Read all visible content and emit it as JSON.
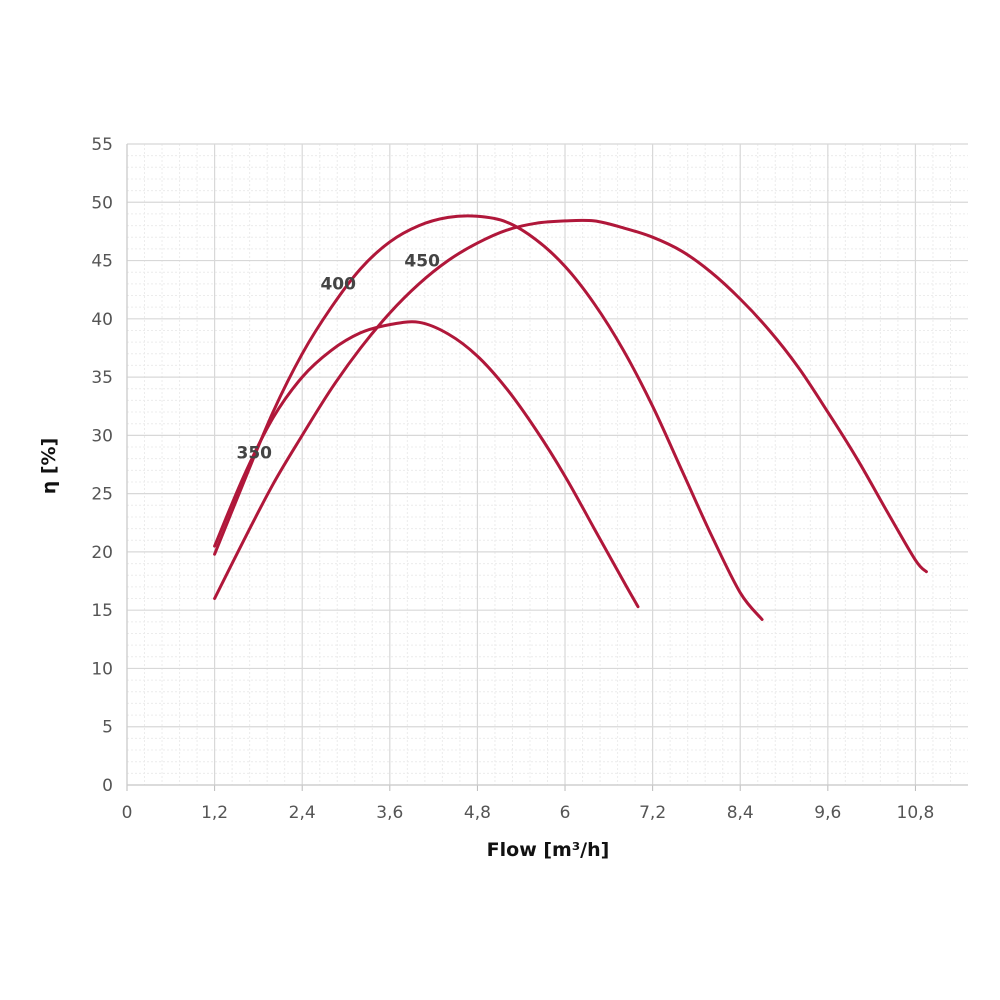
{
  "chart_data": {
    "type": "line",
    "xlabel": "Flow [m³/h]",
    "ylabel": "η [%]",
    "xlim": [
      0,
      11.52
    ],
    "ylim": [
      0,
      55
    ],
    "x_ticks": [
      "0",
      "1,2",
      "2,4",
      "3,6",
      "4,8",
      "6",
      "7,2",
      "8,4",
      "9,6",
      "10,8"
    ],
    "y_ticks": [
      "0",
      "5",
      "10",
      "15",
      "20",
      "25",
      "30",
      "35",
      "40",
      "45",
      "50",
      "55"
    ],
    "grid": true,
    "colors": {
      "curve": "#b0173a",
      "grid_major": "#d8d8d8",
      "grid_minor": "#ececec"
    },
    "series": [
      {
        "name": "350",
        "label": "350",
        "label_at": [
          1.5,
          28
        ],
        "points": [
          [
            1.2,
            20.5
          ],
          [
            1.6,
            26.5
          ],
          [
            2.0,
            31.5
          ],
          [
            2.4,
            35.0
          ],
          [
            2.8,
            37.3
          ],
          [
            3.2,
            38.8
          ],
          [
            3.6,
            39.5
          ],
          [
            4.0,
            39.7
          ],
          [
            4.4,
            38.7
          ],
          [
            4.8,
            36.8
          ],
          [
            5.2,
            34.0
          ],
          [
            5.6,
            30.5
          ],
          [
            6.0,
            26.5
          ],
          [
            6.4,
            22.0
          ],
          [
            6.8,
            17.5
          ],
          [
            7.0,
            15.3
          ]
        ]
      },
      {
        "name": "400",
        "label": "400",
        "label_at": [
          2.65,
          42.5
        ],
        "points": [
          [
            1.2,
            19.8
          ],
          [
            1.6,
            26.0
          ],
          [
            2.0,
            32.0
          ],
          [
            2.4,
            37.0
          ],
          [
            2.8,
            41.0
          ],
          [
            3.2,
            44.3
          ],
          [
            3.6,
            46.6
          ],
          [
            4.0,
            48.0
          ],
          [
            4.4,
            48.7
          ],
          [
            4.8,
            48.8
          ],
          [
            5.2,
            48.3
          ],
          [
            5.6,
            46.8
          ],
          [
            6.0,
            44.5
          ],
          [
            6.4,
            41.3
          ],
          [
            6.8,
            37.3
          ],
          [
            7.2,
            32.5
          ],
          [
            7.6,
            27.0
          ],
          [
            8.0,
            21.5
          ],
          [
            8.4,
            16.5
          ],
          [
            8.7,
            14.2
          ]
        ]
      },
      {
        "name": "450",
        "label": "450",
        "label_at": [
          3.8,
          44.5
        ],
        "points": [
          [
            1.2,
            16.0
          ],
          [
            1.6,
            21.0
          ],
          [
            2.0,
            25.8
          ],
          [
            2.4,
            30.0
          ],
          [
            2.8,
            34.0
          ],
          [
            3.2,
            37.5
          ],
          [
            3.6,
            40.5
          ],
          [
            4.0,
            43.0
          ],
          [
            4.4,
            45.0
          ],
          [
            4.8,
            46.5
          ],
          [
            5.2,
            47.6
          ],
          [
            5.6,
            48.2
          ],
          [
            6.0,
            48.4
          ],
          [
            6.4,
            48.4
          ],
          [
            6.8,
            47.8
          ],
          [
            7.2,
            47.0
          ],
          [
            7.6,
            45.8
          ],
          [
            8.0,
            44.0
          ],
          [
            8.4,
            41.7
          ],
          [
            8.8,
            39.0
          ],
          [
            9.2,
            35.8
          ],
          [
            9.6,
            32.0
          ],
          [
            10.0,
            28.0
          ],
          [
            10.4,
            23.6
          ],
          [
            10.8,
            19.3
          ],
          [
            10.95,
            18.3
          ]
        ]
      }
    ]
  }
}
